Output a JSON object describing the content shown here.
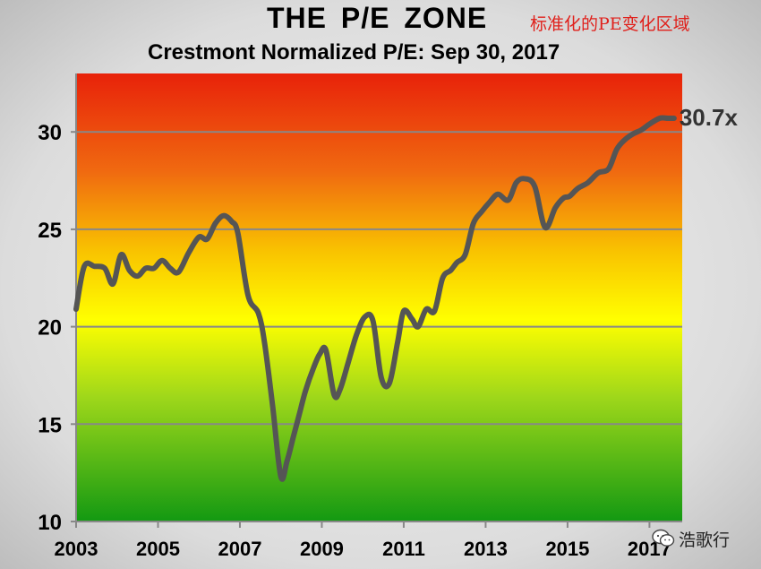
{
  "title": "THE  P/E  ZONE",
  "title_cn": "标准化的PE变化区域",
  "subtitle": "Crestmont Normalized P/E: Sep 30, 2017",
  "end_label": "30.7x",
  "watermark": "浩歌行",
  "colors": {
    "line": "#555555",
    "top": "#e8220a",
    "middle": "#ffff00",
    "bottom": "#1a9a12",
    "grid": "#888888",
    "title_cn": "#e0201b"
  },
  "chart_data": {
    "type": "line",
    "title": "Crestmont Normalized P/E: Sep 30, 2017",
    "xlabel": "",
    "ylabel": "",
    "xlim": [
      2003,
      2017.8
    ],
    "ylim": [
      10,
      33
    ],
    "yticks": [
      10,
      15,
      20,
      25,
      30
    ],
    "xticks": [
      2003,
      2005,
      2007,
      2009,
      2011,
      2013,
      2015,
      2017
    ],
    "grid": true,
    "series": [
      {
        "x": [
          2003.0,
          2003.2,
          2003.45,
          2003.7,
          2003.9,
          2004.1,
          2004.3,
          2004.5,
          2004.7,
          2004.9,
          2005.1,
          2005.3,
          2005.5,
          2005.75,
          2006.0,
          2006.2,
          2006.4,
          2006.6,
          2006.8,
          2006.95,
          2007.2,
          2007.45,
          2007.6,
          2007.8,
          2008.0,
          2008.15,
          2008.3,
          2008.45,
          2008.6,
          2008.8,
          2008.95,
          2009.1,
          2009.3,
          2009.45,
          2009.65,
          2009.85,
          2010.05,
          2010.25,
          2010.45,
          2010.65,
          2010.85,
          2011.0,
          2011.2,
          2011.35,
          2011.55,
          2011.75,
          2011.95,
          2012.15,
          2012.3,
          2012.5,
          2012.7,
          2012.9,
          2013.1,
          2013.3,
          2013.55,
          2013.75,
          2013.95,
          2014.2,
          2014.45,
          2014.7,
          2014.9,
          2015.05,
          2015.25,
          2015.5,
          2015.75,
          2016.0,
          2016.2,
          2016.4,
          2016.6,
          2016.8,
          2017.0,
          2017.25,
          2017.45,
          2017.6
        ],
        "values": [
          20.9,
          23.1,
          23.1,
          23.0,
          22.2,
          23.7,
          22.9,
          22.6,
          23.0,
          23.0,
          23.4,
          23.0,
          22.8,
          23.8,
          24.6,
          24.5,
          25.3,
          25.7,
          25.4,
          24.8,
          21.6,
          20.7,
          19.2,
          15.9,
          12.3,
          13.1,
          14.3,
          15.5,
          16.7,
          17.9,
          18.6,
          18.8,
          16.5,
          16.8,
          18.2,
          19.6,
          20.5,
          20.3,
          17.4,
          17.1,
          19.2,
          20.8,
          20.4,
          20.0,
          20.9,
          20.8,
          22.5,
          22.9,
          23.3,
          23.7,
          25.3,
          25.9,
          26.4,
          26.8,
          26.5,
          27.4,
          27.6,
          27.2,
          25.1,
          26.1,
          26.6,
          26.7,
          27.1,
          27.4,
          27.9,
          28.1,
          29.1,
          29.6,
          29.9,
          30.1,
          30.4,
          30.7,
          30.7,
          30.7
        ]
      }
    ]
  }
}
